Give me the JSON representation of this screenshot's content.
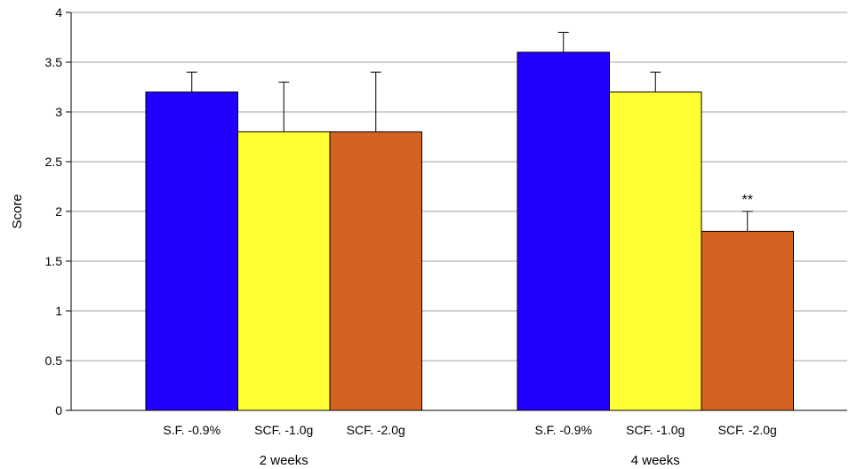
{
  "chart_data": {
    "type": "bar",
    "title": "",
    "xlabel": "",
    "ylabel": "Score",
    "ylim": [
      0,
      4
    ],
    "yticks": [
      "0",
      "0.5",
      "1",
      "1.5",
      "2",
      "2.5",
      "3",
      "3.5",
      "4"
    ],
    "grid": true,
    "groups": [
      {
        "label": "2 weeks",
        "bars": [
          {
            "category": "S.F. -0.9%",
            "value": 3.2,
            "error": 0.2,
            "color": "#2200ff",
            "annotation": ""
          },
          {
            "category": "SCF. -1.0g",
            "value": 2.8,
            "error": 0.5,
            "color": "#ffff33",
            "annotation": ""
          },
          {
            "category": "SCF. -2.0g",
            "value": 2.8,
            "error": 0.6,
            "color": "#d46222",
            "annotation": ""
          }
        ]
      },
      {
        "label": "4 weeks",
        "bars": [
          {
            "category": "S.F. -0.9%",
            "value": 3.6,
            "error": 0.2,
            "color": "#2200ff",
            "annotation": ""
          },
          {
            "category": "SCF. -1.0g",
            "value": 3.2,
            "error": 0.2,
            "color": "#ffff33",
            "annotation": ""
          },
          {
            "category": "SCF. -2.0g",
            "value": 1.8,
            "error": 0.2,
            "color": "#d46222",
            "annotation": "**"
          }
        ]
      }
    ]
  }
}
